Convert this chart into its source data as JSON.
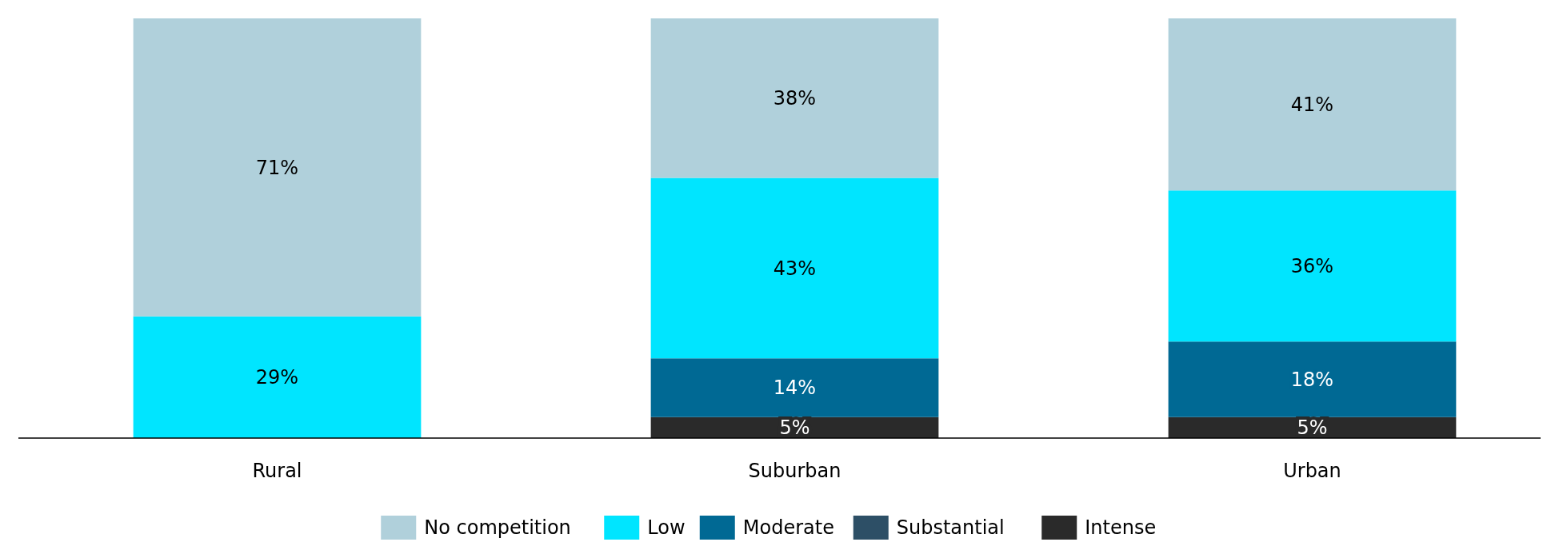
{
  "chart_data": {
    "type": "bar",
    "stacked": true,
    "categories": [
      "Rural",
      "Suburban",
      "Urban"
    ],
    "ylim": [
      0,
      100
    ],
    "tick_labels": "x",
    "legend": "bottom",
    "series": [
      {
        "name": "Intense",
        "color": "#2a2a2a",
        "values": [
          null,
          5,
          5
        ],
        "value_labels": [
          null,
          "5%",
          "5%"
        ]
      },
      {
        "name": "Substantial",
        "color": "#2d4f66",
        "values": [
          null,
          null,
          null
        ],
        "value_labels": [
          null,
          null,
          null
        ]
      },
      {
        "name": "Moderate",
        "color": "#006994",
        "values": [
          null,
          14,
          18
        ],
        "value_labels": [
          null,
          "14%",
          "18%"
        ]
      },
      {
        "name": "Low",
        "color": "#00e5ff",
        "values": [
          29,
          43,
          36
        ],
        "value_labels": [
          "29%",
          "43%",
          "36%"
        ]
      },
      {
        "name": "No competition",
        "color": "#b0d0db",
        "values": [
          71,
          38,
          41
        ],
        "value_labels": [
          "71%",
          "38%",
          "41%"
        ]
      }
    ]
  }
}
